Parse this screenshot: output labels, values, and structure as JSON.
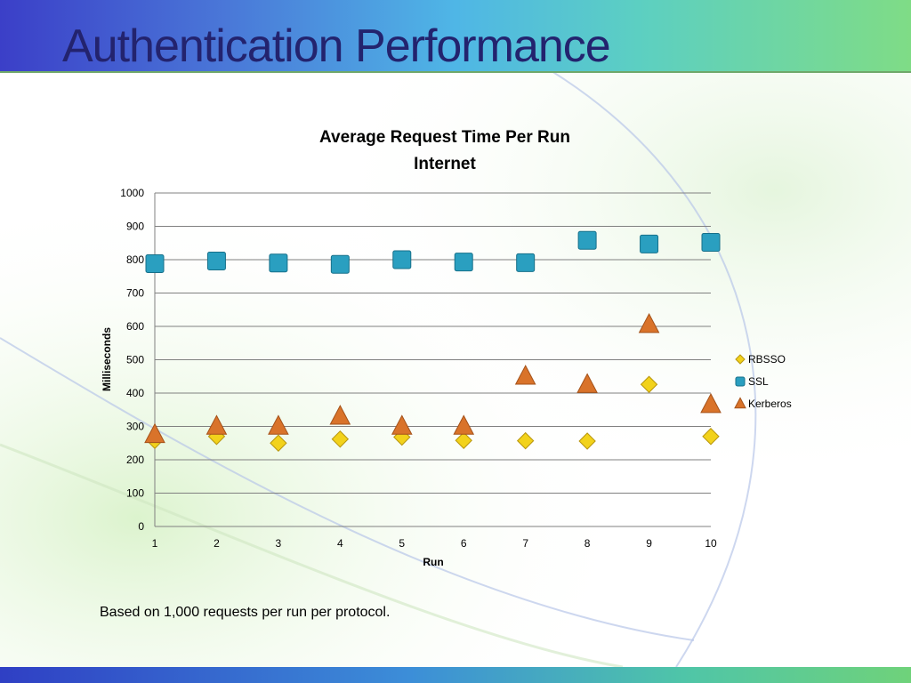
{
  "slide": {
    "title": "Authentication Performance",
    "footnote": "Based on 1,000 requests per run per protocol."
  },
  "colors": {
    "title": "#23236e",
    "rbsso": "#f2d21b",
    "ssl": "#2a9fc0",
    "kerberos": "#d9732a",
    "grid": "#808080"
  },
  "chart_data": {
    "type": "scatter",
    "title": "Average Request Time Per Run",
    "subtitle": "Internet",
    "xlabel": "Run",
    "ylabel": "Milliseconds",
    "x": [
      1,
      2,
      3,
      4,
      5,
      6,
      7,
      8,
      9,
      10
    ],
    "x_tick_labels": [
      "1",
      "2",
      "3",
      "4",
      "5",
      "6",
      "7",
      "8",
      "9",
      "10"
    ],
    "y_tick_labels": [
      "0",
      "100",
      "200",
      "300",
      "400",
      "500",
      "600",
      "700",
      "800",
      "900",
      "1000"
    ],
    "ylim": [
      0,
      1000
    ],
    "grid": "horizontal",
    "legend_position": "right",
    "series": [
      {
        "name": "RBSSO",
        "marker": "diamond",
        "values": [
          258,
          270,
          250,
          262,
          268,
          258,
          257,
          256,
          426,
          270
        ]
      },
      {
        "name": "SSL",
        "marker": "square",
        "values": [
          788,
          796,
          790,
          786,
          800,
          793,
          791,
          858,
          847,
          852
        ]
      },
      {
        "name": "Kerberos",
        "marker": "triangle",
        "values": [
          275,
          300,
          300,
          330,
          300,
          300,
          450,
          425,
          605,
          365
        ]
      }
    ]
  }
}
